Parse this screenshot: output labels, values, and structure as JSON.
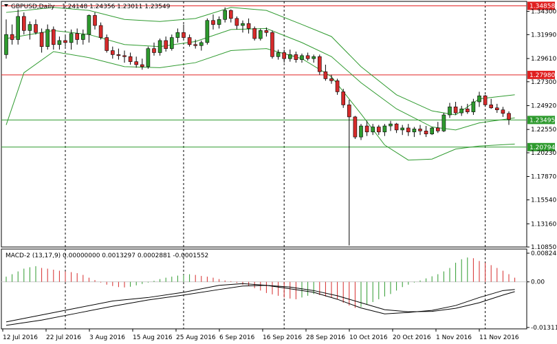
{
  "header": {
    "symbol": "GBPUSD,Daily",
    "ohlc": "1.24148 1.24356 1.23011 1.23549"
  },
  "macd_header": "MACD-2 (13,17,9) 0.00000000 0.0013297 0.0002881 -0.0001552",
  "colors": {
    "bull": "#2e9a2e",
    "bear": "#d62b2b",
    "band": "#2e9a2e",
    "resistance": "#e02020",
    "support": "#2e9a2e",
    "grid": "#000000"
  },
  "price_axis": {
    "ticks": [
      "1.34300",
      "1.31990",
      "1.29610",
      "1.27300",
      "1.24920",
      "1.22550",
      "1.20230",
      "1.17870",
      "1.15540",
      "1.13160",
      "1.10850"
    ],
    "range": [
      1.1085,
      1.353
    ]
  },
  "levels": [
    {
      "label": "1.34858",
      "value": 1.34858,
      "kind": "resistance"
    },
    {
      "label": "1.27980",
      "value": 1.2798,
      "kind": "resistance"
    },
    {
      "label": "1.23495",
      "value": 1.23495,
      "kind": "support"
    },
    {
      "label": "1.20794",
      "value": 1.20794,
      "kind": "support"
    }
  ],
  "macd_axis": {
    "ticks": [
      "0.008245",
      "0.00",
      "-0.013117"
    ],
    "range": [
      -0.013117,
      0.008245
    ]
  },
  "date_axis": [
    "12 Jul 2016",
    "22 Jul 2016",
    "3 Aug 2016",
    "15 Aug 2016",
    "25 Aug 2016",
    "6 Sep 2016",
    "16 Sep 2016",
    "28 Sep 2016",
    "10 Oct 2016",
    "20 Oct 2016",
    "1 Nov 2016",
    "11 Nov 2016"
  ],
  "chart_data": {
    "type": "candlestick",
    "candles": [
      [
        1.3,
        1.335,
        1.296,
        1.32
      ],
      [
        1.32,
        1.33,
        1.31,
        1.315
      ],
      [
        1.315,
        1.345,
        1.31,
        1.338
      ],
      [
        1.338,
        1.342,
        1.32,
        1.324
      ],
      [
        1.324,
        1.333,
        1.315,
        1.33
      ],
      [
        1.33,
        1.335,
        1.32,
        1.322
      ],
      [
        1.322,
        1.326,
        1.302,
        1.308
      ],
      [
        1.308,
        1.33,
        1.305,
        1.325
      ],
      [
        1.325,
        1.328,
        1.305,
        1.31
      ],
      [
        1.31,
        1.318,
        1.305,
        1.314
      ],
      [
        1.314,
        1.32,
        1.308,
        1.312
      ],
      [
        1.312,
        1.325,
        1.305,
        1.321
      ],
      [
        1.321,
        1.326,
        1.31,
        1.315
      ],
      [
        1.315,
        1.325,
        1.31,
        1.32
      ],
      [
        1.32,
        1.34,
        1.312,
        1.339
      ],
      [
        1.339,
        1.342,
        1.325,
        1.329
      ],
      [
        1.329,
        1.332,
        1.315,
        1.317
      ],
      [
        1.317,
        1.32,
        1.302,
        1.304
      ],
      [
        1.304,
        1.308,
        1.296,
        1.3
      ],
      [
        1.3,
        1.306,
        1.295,
        1.299
      ],
      [
        1.299,
        1.304,
        1.292,
        1.298
      ],
      [
        1.298,
        1.302,
        1.29,
        1.293
      ],
      [
        1.293,
        1.298,
        1.287,
        1.29
      ],
      [
        1.29,
        1.296,
        1.285,
        1.288
      ],
      [
        1.288,
        1.308,
        1.286,
        1.306
      ],
      [
        1.306,
        1.312,
        1.299,
        1.302
      ],
      [
        1.302,
        1.316,
        1.299,
        1.314
      ],
      [
        1.314,
        1.318,
        1.303,
        1.306
      ],
      [
        1.306,
        1.32,
        1.304,
        1.317
      ],
      [
        1.317,
        1.326,
        1.312,
        1.322
      ],
      [
        1.322,
        1.33,
        1.314,
        1.317
      ],
      [
        1.317,
        1.32,
        1.308,
        1.31
      ],
      [
        1.31,
        1.315,
        1.306,
        1.309
      ],
      [
        1.309,
        1.314,
        1.304,
        1.312
      ],
      [
        1.312,
        1.336,
        1.31,
        1.334
      ],
      [
        1.334,
        1.34,
        1.325,
        1.33
      ],
      [
        1.33,
        1.338,
        1.326,
        1.335
      ],
      [
        1.335,
        1.347,
        1.332,
        1.344
      ],
      [
        1.344,
        1.345,
        1.332,
        1.336
      ],
      [
        1.336,
        1.338,
        1.325,
        1.329
      ],
      [
        1.329,
        1.334,
        1.322,
        1.331
      ],
      [
        1.331,
        1.336,
        1.321,
        1.326
      ],
      [
        1.326,
        1.328,
        1.314,
        1.316
      ],
      [
        1.316,
        1.326,
        1.314,
        1.324
      ],
      [
        1.324,
        1.327,
        1.318,
        1.322
      ],
      [
        1.322,
        1.324,
        1.296,
        1.298
      ],
      [
        1.298,
        1.305,
        1.295,
        1.302
      ],
      [
        1.302,
        1.305,
        1.292,
        1.296
      ],
      [
        1.296,
        1.305,
        1.293,
        1.3
      ],
      [
        1.3,
        1.303,
        1.292,
        1.295
      ],
      [
        1.295,
        1.301,
        1.292,
        1.299
      ],
      [
        1.299,
        1.302,
        1.294,
        1.296
      ],
      [
        1.296,
        1.3,
        1.292,
        1.298
      ],
      [
        1.298,
        1.3,
        1.28,
        1.283
      ],
      [
        1.283,
        1.29,
        1.274,
        1.276
      ],
      [
        1.276,
        1.28,
        1.271,
        1.274
      ],
      [
        1.274,
        1.276,
        1.26,
        1.263
      ],
      [
        1.263,
        1.266,
        1.247,
        1.25
      ],
      [
        1.25,
        1.255,
        1.11,
        1.238
      ],
      [
        1.238,
        1.239,
        1.216,
        1.218
      ],
      [
        1.218,
        1.231,
        1.215,
        1.229
      ],
      [
        1.229,
        1.234,
        1.219,
        1.223
      ],
      [
        1.223,
        1.231,
        1.22,
        1.228
      ],
      [
        1.228,
        1.23,
        1.22,
        1.223
      ],
      [
        1.223,
        1.231,
        1.219,
        1.229
      ],
      [
        1.229,
        1.234,
        1.224,
        1.231
      ],
      [
        1.231,
        1.232,
        1.222,
        1.225
      ],
      [
        1.225,
        1.23,
        1.22,
        1.227
      ],
      [
        1.227,
        1.231,
        1.219,
        1.223
      ],
      [
        1.223,
        1.228,
        1.218,
        1.226
      ],
      [
        1.226,
        1.23,
        1.22,
        1.224
      ],
      [
        1.224,
        1.229,
        1.218,
        1.221
      ],
      [
        1.221,
        1.228,
        1.22,
        1.227
      ],
      [
        1.227,
        1.233,
        1.222,
        1.224
      ],
      [
        1.224,
        1.242,
        1.223,
        1.24
      ],
      [
        1.24,
        1.252,
        1.237,
        1.248
      ],
      [
        1.248,
        1.253,
        1.24,
        1.242
      ],
      [
        1.242,
        1.249,
        1.239,
        1.246
      ],
      [
        1.246,
        1.251,
        1.241,
        1.243
      ],
      [
        1.243,
        1.256,
        1.24,
        1.253
      ],
      [
        1.253,
        1.263,
        1.248,
        1.259
      ],
      [
        1.259,
        1.26,
        1.248,
        1.25
      ],
      [
        1.25,
        1.256,
        1.246,
        1.247
      ],
      [
        1.247,
        1.251,
        1.242,
        1.245
      ],
      [
        1.245,
        1.248,
        1.238,
        1.2415
      ],
      [
        1.2415,
        1.2436,
        1.2301,
        1.2355
      ]
    ],
    "bb_upper": [
      [
        0,
        1.342
      ],
      [
        8,
        1.347
      ],
      [
        14,
        1.344
      ],
      [
        20,
        1.335
      ],
      [
        26,
        1.333
      ],
      [
        32,
        1.336
      ],
      [
        38,
        1.347
      ],
      [
        44,
        1.344
      ],
      [
        50,
        1.33
      ],
      [
        55,
        1.318
      ],
      [
        60,
        1.288
      ],
      [
        66,
        1.26
      ],
      [
        72,
        1.244
      ],
      [
        76,
        1.24
      ],
      [
        80,
        1.256
      ],
      [
        86,
        1.26
      ]
    ],
    "bb_middle": [
      [
        0,
        1.316
      ],
      [
        8,
        1.324
      ],
      [
        14,
        1.32
      ],
      [
        20,
        1.31
      ],
      [
        26,
        1.308
      ],
      [
        32,
        1.313
      ],
      [
        38,
        1.325
      ],
      [
        44,
        1.326
      ],
      [
        50,
        1.312
      ],
      [
        55,
        1.298
      ],
      [
        60,
        1.272
      ],
      [
        66,
        1.246
      ],
      [
        72,
        1.228
      ],
      [
        76,
        1.225
      ],
      [
        80,
        1.232
      ],
      [
        86,
        1.237
      ]
    ],
    "bb_lower": [
      [
        0,
        1.23
      ],
      [
        3,
        1.282
      ],
      [
        8,
        1.303
      ],
      [
        14,
        1.297
      ],
      [
        20,
        1.288
      ],
      [
        26,
        1.287
      ],
      [
        32,
        1.292
      ],
      [
        38,
        1.304
      ],
      [
        44,
        1.306
      ],
      [
        50,
        1.296
      ],
      [
        55,
        1.278
      ],
      [
        60,
        1.241
      ],
      [
        64,
        1.21
      ],
      [
        68,
        1.195
      ],
      [
        72,
        1.196
      ],
      [
        76,
        1.206
      ],
      [
        80,
        1.209
      ],
      [
        86,
        1.211
      ]
    ],
    "macd_hist": [
      0.0015,
      0.0022,
      0.003,
      0.0038,
      0.0042,
      0.0045,
      0.004,
      0.0038,
      0.0035,
      0.0032,
      0.003,
      0.0028,
      0.0025,
      0.002,
      0.0012,
      0.0005,
      -0.0002,
      -0.0008,
      -0.0012,
      -0.0015,
      -0.0016,
      -0.0014,
      -0.001,
      -0.0006,
      -0.0002,
      0.0003,
      0.0008,
      0.0012,
      0.0015,
      0.0018,
      0.002,
      0.0022,
      0.002,
      0.0017,
      0.0015,
      0.0012,
      0.0008,
      0.0004,
      0.0002,
      -0.0003,
      -0.0008,
      -0.0012,
      -0.0018,
      -0.0025,
      -0.0032,
      -0.0036,
      -0.004,
      -0.0045,
      -0.0048,
      -0.005,
      -0.0045,
      -0.004,
      -0.0035,
      -0.0038,
      -0.0042,
      -0.0045,
      -0.005,
      -0.006,
      -0.0068,
      -0.0075,
      -0.0072,
      -0.0065,
      -0.0058,
      -0.005,
      -0.0042,
      -0.0035,
      -0.0025,
      -0.0015,
      -0.0008,
      -0.0002,
      0.0004,
      0.001,
      0.0016,
      0.0022,
      0.003,
      0.004,
      0.0055,
      0.0065,
      0.007,
      0.0068,
      0.006,
      0.0055,
      0.0048,
      0.004,
      0.0032,
      0.0022,
      0.0012
    ],
    "macd_line": [
      [
        0,
        -0.0115
      ],
      [
        6,
        -0.0095
      ],
      [
        12,
        -0.0075
      ],
      [
        18,
        -0.0055
      ],
      [
        24,
        -0.0045
      ],
      [
        30,
        -0.003
      ],
      [
        36,
        -0.001
      ],
      [
        40,
        -0.0005
      ],
      [
        44,
        -0.001
      ],
      [
        48,
        -0.002
      ],
      [
        52,
        -0.003
      ],
      [
        56,
        -0.005
      ],
      [
        60,
        -0.0075
      ],
      [
        64,
        -0.0092
      ],
      [
        68,
        -0.0088
      ],
      [
        72,
        -0.0082
      ],
      [
        76,
        -0.0068
      ],
      [
        80,
        -0.0045
      ],
      [
        84,
        -0.0025
      ],
      [
        86,
        -0.0022
      ]
    ],
    "signal_line": [
      [
        0,
        -0.0125
      ],
      [
        6,
        -0.011
      ],
      [
        12,
        -0.009
      ],
      [
        18,
        -0.007
      ],
      [
        24,
        -0.0052
      ],
      [
        30,
        -0.0038
      ],
      [
        36,
        -0.0022
      ],
      [
        40,
        -0.0012
      ],
      [
        44,
        -0.001
      ],
      [
        48,
        -0.0015
      ],
      [
        52,
        -0.0025
      ],
      [
        56,
        -0.004
      ],
      [
        60,
        -0.006
      ],
      [
        64,
        -0.008
      ],
      [
        68,
        -0.0086
      ],
      [
        72,
        -0.0085
      ],
      [
        76,
        -0.0076
      ],
      [
        80,
        -0.006
      ],
      [
        84,
        -0.0038
      ],
      [
        86,
        -0.0028
      ]
    ],
    "period_separators": [
      10,
      30,
      47,
      81
    ]
  }
}
